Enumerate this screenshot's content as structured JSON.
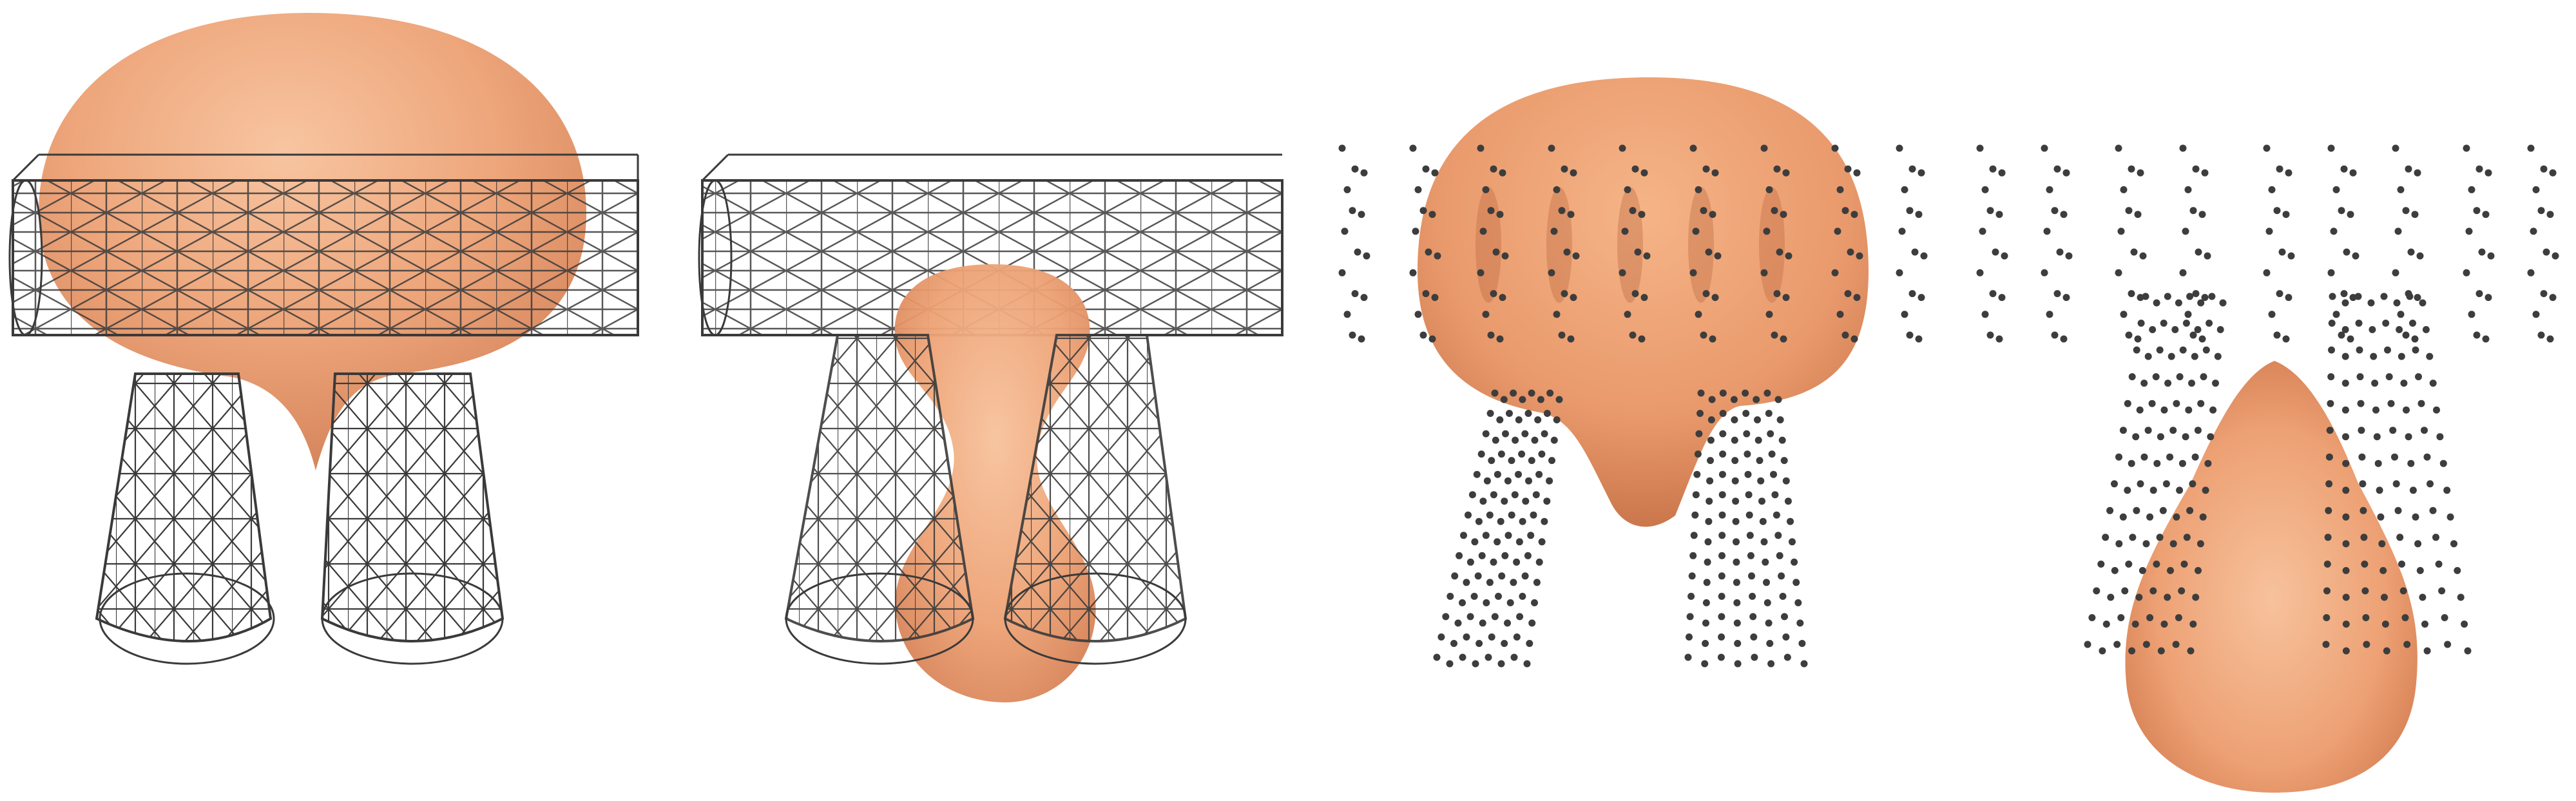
{
  "figure": {
    "panels": [
      {
        "id": "wireframe-full-view",
        "obstacle": "mesh-cylinders",
        "blob": "droplet-above-gap"
      },
      {
        "id": "wireframe-squeeze-view",
        "obstacle": "mesh-cylinders",
        "blob": "droplet-squeezing-through-gap"
      },
      {
        "id": "particles-full-view",
        "obstacle": "sample-points",
        "blob": "droplet-above-gap"
      },
      {
        "id": "particles-passed-view",
        "obstacle": "sample-points",
        "blob": "droplet-below-gap"
      }
    ],
    "colors": {
      "background": "#ffffff",
      "blob_light": "#f5b487",
      "blob_mid": "#e99a6c",
      "blob_dark": "#c56f45",
      "mesh_line": "#3a3a3a",
      "point": "#3d3d3d"
    }
  }
}
